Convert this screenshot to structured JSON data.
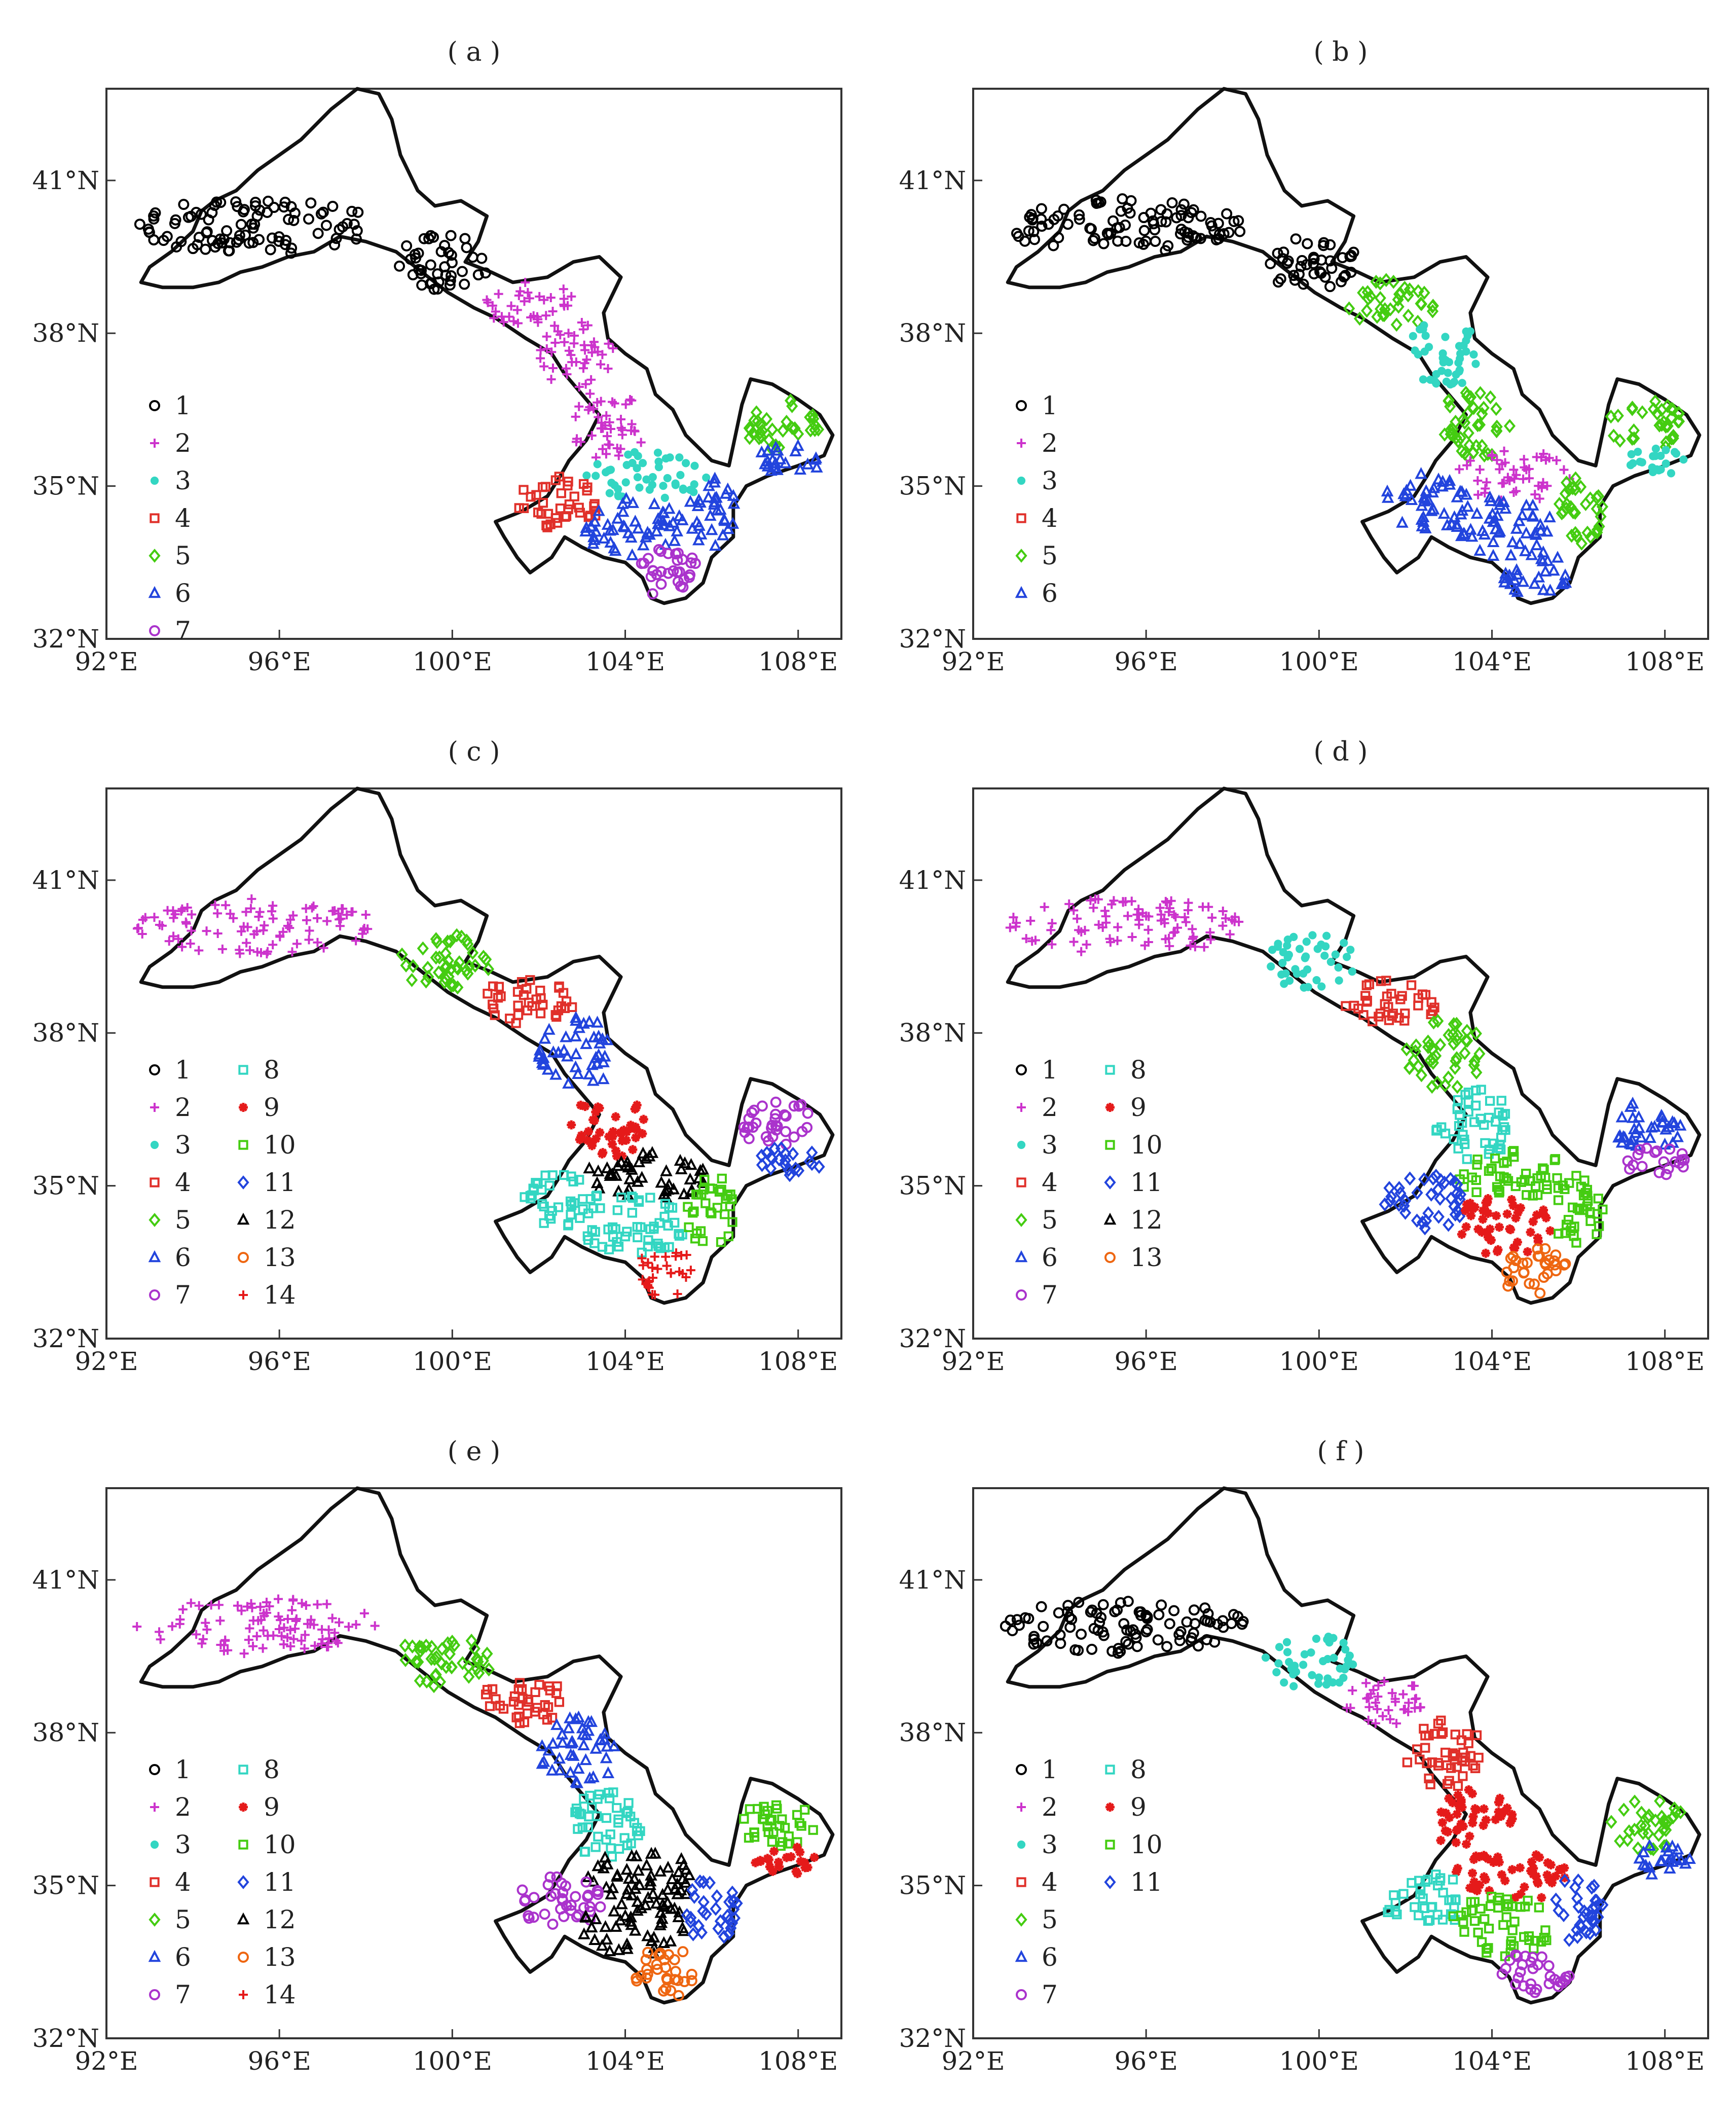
{
  "panels": [
    {
      "label": "( a )",
      "legend": [
        "1",
        "2",
        "3",
        "4",
        "5",
        "6",
        "7"
      ]
    },
    {
      "label": "( b )",
      "legend": [
        "1",
        "2",
        "3",
        "4",
        "5",
        "6"
      ]
    },
    {
      "label": "( c )",
      "legend": [
        "1",
        "2",
        "3",
        "4",
        "5",
        "6",
        "7",
        "8",
        "9",
        "10",
        "11",
        "12",
        "13",
        "14"
      ]
    },
    {
      "label": "( d )",
      "legend": [
        "1",
        "2",
        "3",
        "4",
        "5",
        "6",
        "7",
        "8",
        "9",
        "10",
        "11",
        "12",
        "13"
      ]
    },
    {
      "label": "( e )",
      "legend": [
        "1",
        "2",
        "3",
        "4",
        "5",
        "6",
        "7",
        "8",
        "9",
        "10",
        "11",
        "12",
        "13",
        "14"
      ]
    },
    {
      "label": "( f )",
      "legend": [
        "1",
        "2",
        "3",
        "4",
        "5",
        "6",
        "7",
        "8",
        "9",
        "10",
        "11"
      ]
    }
  ],
  "axes": {
    "x_ticks": [
      "92°E",
      "96°E",
      "100°E",
      "104°E",
      "108°E"
    ],
    "y_ticks": [
      "32°N",
      "35°N",
      "38°N",
      "41°N"
    ],
    "x_values": [
      92,
      96,
      100,
      104,
      108
    ],
    "y_values": [
      32,
      35,
      38,
      41
    ],
    "xlim": [
      92,
      109
    ],
    "ylim": [
      32,
      42.8
    ]
  },
  "styles": [
    {
      "marker": "circle",
      "color": "#000000"
    },
    {
      "marker": "plus",
      "color": "#cc33cc"
    },
    {
      "marker": "dot",
      "color": "#33d6c2"
    },
    {
      "marker": "square",
      "color": "#e0302a"
    },
    {
      "marker": "diamond",
      "color": "#44cc11"
    },
    {
      "marker": "triangle",
      "color": "#2244dd"
    },
    {
      "marker": "circle",
      "color": "#aa33cc"
    },
    {
      "marker": "square",
      "color": "#33d6c2"
    },
    {
      "marker": "star",
      "color": "#e51a1a"
    },
    {
      "marker": "square",
      "color": "#44cc11"
    },
    {
      "marker": "diamond",
      "color": "#2244dd"
    },
    {
      "marker": "triangle",
      "color": "#000000"
    },
    {
      "marker": "circle",
      "color": "#ee6611"
    },
    {
      "marker": "plus",
      "color": "#e51a1a"
    }
  ],
  "boundary": [
    [
      92.8,
      39.0
    ],
    [
      93.0,
      39.3
    ],
    [
      93.5,
      39.6
    ],
    [
      94.0,
      40.0
    ],
    [
      94.2,
      40.4
    ],
    [
      94.5,
      40.6
    ],
    [
      95.0,
      40.8
    ],
    [
      95.5,
      41.2
    ],
    [
      96.0,
      41.5
    ],
    [
      96.5,
      41.8
    ],
    [
      97.2,
      42.4
    ],
    [
      97.8,
      42.8
    ],
    [
      98.3,
      42.7
    ],
    [
      98.6,
      42.2
    ],
    [
      98.8,
      41.5
    ],
    [
      99.2,
      40.8
    ],
    [
      99.6,
      40.5
    ],
    [
      100.2,
      40.6
    ],
    [
      100.8,
      40.3
    ],
    [
      100.6,
      39.8
    ],
    [
      100.3,
      39.4
    ],
    [
      100.9,
      39.2
    ],
    [
      101.4,
      39.0
    ],
    [
      102.2,
      39.1
    ],
    [
      102.8,
      39.4
    ],
    [
      103.4,
      39.5
    ],
    [
      103.9,
      39.1
    ],
    [
      103.5,
      38.4
    ],
    [
      103.6,
      37.9
    ],
    [
      104.0,
      37.6
    ],
    [
      104.5,
      37.3
    ],
    [
      104.7,
      36.8
    ],
    [
      105.1,
      36.5
    ],
    [
      105.4,
      36.0
    ],
    [
      106.0,
      35.5
    ],
    [
      106.4,
      35.4
    ],
    [
      106.5,
      35.8
    ],
    [
      106.7,
      36.6
    ],
    [
      106.9,
      37.1
    ],
    [
      107.4,
      37.0
    ],
    [
      108.0,
      36.7
    ],
    [
      108.5,
      36.4
    ],
    [
      108.8,
      36.0
    ],
    [
      108.6,
      35.6
    ],
    [
      108.0,
      35.4
    ],
    [
      107.3,
      35.2
    ],
    [
      106.8,
      35.0
    ],
    [
      106.5,
      34.6
    ],
    [
      106.5,
      34.0
    ],
    [
      106.0,
      33.6
    ],
    [
      105.8,
      33.1
    ],
    [
      105.4,
      32.8
    ],
    [
      104.9,
      32.7
    ],
    [
      104.6,
      32.8
    ],
    [
      104.4,
      33.2
    ],
    [
      104.0,
      33.5
    ],
    [
      103.5,
      33.6
    ],
    [
      103.0,
      33.8
    ],
    [
      102.6,
      34.0
    ],
    [
      102.3,
      33.6
    ],
    [
      101.8,
      33.3
    ],
    [
      101.5,
      33.6
    ],
    [
      101.2,
      34.0
    ],
    [
      101.0,
      34.3
    ],
    [
      101.6,
      34.5
    ],
    [
      102.2,
      34.8
    ],
    [
      102.5,
      35.2
    ],
    [
      102.7,
      35.5
    ],
    [
      103.1,
      35.9
    ],
    [
      103.4,
      36.4
    ],
    [
      103.0,
      36.8
    ],
    [
      102.6,
      37.2
    ],
    [
      102.3,
      37.6
    ],
    [
      101.7,
      37.9
    ],
    [
      101.0,
      38.3
    ],
    [
      100.5,
      38.5
    ],
    [
      99.9,
      38.8
    ],
    [
      99.3,
      39.2
    ],
    [
      98.7,
      39.6
    ],
    [
      98.0,
      39.8
    ],
    [
      97.4,
      39.9
    ],
    [
      96.8,
      39.6
    ],
    [
      96.2,
      39.5
    ],
    [
      95.6,
      39.3
    ],
    [
      95.1,
      39.2
    ],
    [
      94.6,
      39.0
    ],
    [
      94.0,
      38.9
    ],
    [
      93.3,
      38.9
    ],
    [
      92.8,
      39.0
    ]
  ],
  "regions": {
    "A": {
      "cx": 95.5,
      "cy": 40.1,
      "rx": 2.8,
      "ry": 0.55
    },
    "B": {
      "cx": 99.8,
      "cy": 39.4,
      "rx": 1.1,
      "ry": 0.55
    },
    "C": {
      "cx": 101.7,
      "cy": 38.6,
      "rx": 1.1,
      "ry": 0.45
    },
    "D": {
      "cx": 102.9,
      "cy": 37.6,
      "rx": 0.9,
      "ry": 0.7
    },
    "E": {
      "cx": 103.6,
      "cy": 36.2,
      "rx": 0.9,
      "ry": 0.7
    },
    "F": {
      "cx": 104.5,
      "cy": 35.2,
      "rx": 1.4,
      "ry": 0.5
    },
    "G": {
      "cx": 102.5,
      "cy": 34.7,
      "rx": 1.0,
      "ry": 0.55
    },
    "H": {
      "cx": 104.2,
      "cy": 34.2,
      "rx": 1.2,
      "ry": 0.6
    },
    "I": {
      "cx": 105.0,
      "cy": 33.3,
      "rx": 0.8,
      "ry": 0.5
    },
    "J": {
      "cx": 106.0,
      "cy": 34.5,
      "rx": 0.6,
      "ry": 0.7
    },
    "K": {
      "cx": 107.6,
      "cy": 36.2,
      "rx": 0.9,
      "ry": 0.5
    },
    "L": {
      "cx": 107.8,
      "cy": 35.5,
      "rx": 0.8,
      "ry": 0.3
    }
  },
  "assign": [
    {
      "A": 1,
      "B": 1,
      "C": 2,
      "D": 2,
      "E": 2,
      "F": 3,
      "G": 4,
      "H": 6,
      "I": 7,
      "J": 6,
      "K": 5,
      "L": 6
    },
    {
      "A": 1,
      "B": 1,
      "C": 5,
      "D": 3,
      "E": 5,
      "F": 2,
      "G": 6,
      "H": 6,
      "I": 6,
      "J": 5,
      "K": 5,
      "L": 3
    },
    {
      "A": 2,
      "B": 5,
      "C": 4,
      "D": 6,
      "E": 9,
      "F": 12,
      "G": 8,
      "H": 8,
      "I": 14,
      "J": 10,
      "K": 7,
      "L": 11
    },
    {
      "A": 2,
      "B": 3,
      "C": 4,
      "D": 5,
      "E": 8,
      "F": 10,
      "G": 11,
      "H": 9,
      "I": 13,
      "J": 10,
      "K": 6,
      "L": 7
    },
    {
      "A": 2,
      "B": 5,
      "C": 4,
      "D": 6,
      "E": 8,
      "F": 12,
      "G": 7,
      "H": 12,
      "I": 13,
      "J": 11,
      "K": 10,
      "L": 9
    },
    {
      "A": 1,
      "B": 3,
      "C": 2,
      "D": 4,
      "E": 9,
      "F": 9,
      "G": 8,
      "H": 10,
      "I": 7,
      "J": 11,
      "K": 5,
      "L": 6
    }
  ]
}
